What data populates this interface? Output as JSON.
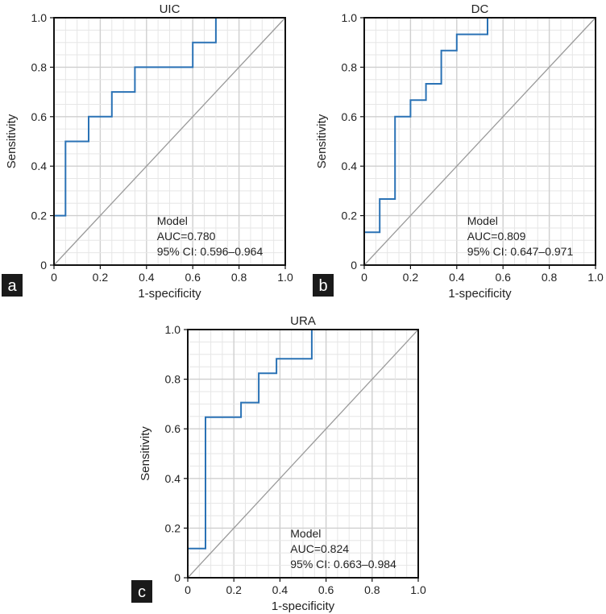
{
  "chart_data": [
    {
      "type": "line",
      "panel_label": "a",
      "title": "UIC",
      "xlabel": "1-specificity",
      "ylabel": "Sensitivity",
      "xlim": [
        0,
        1
      ],
      "ylim": [
        0,
        1
      ],
      "xticks": [
        "0",
        "0.2",
        "0.4",
        "0.6",
        "0.8",
        "1.0"
      ],
      "yticks": [
        "0",
        "0.2",
        "0.4",
        "0.6",
        "0.8",
        "1.0"
      ],
      "grid": true,
      "legend_position": "bottom-right",
      "legend": [
        "Model",
        "AUC=0.780",
        "95% CI: 0.596–0.964"
      ],
      "series": [
        {
          "name": "ROC curve",
          "color": "#2a72b5",
          "x": [
            0,
            0,
            0.05,
            0.05,
            0.15,
            0.15,
            0.25,
            0.25,
            0.35,
            0.35,
            0.6,
            0.6,
            0.7,
            0.7,
            1.0
          ],
          "y": [
            0,
            0.2,
            0.2,
            0.5,
            0.5,
            0.6,
            0.6,
            0.7,
            0.7,
            0.8,
            0.8,
            0.9,
            0.9,
            1.0,
            1.0
          ]
        },
        {
          "name": "reference diagonal",
          "color": "#9a9a9a",
          "x": [
            0,
            1
          ],
          "y": [
            0,
            1
          ]
        }
      ]
    },
    {
      "type": "line",
      "panel_label": "b",
      "title": "DC",
      "xlabel": "1-specificity",
      "ylabel": "Sensitivity",
      "xlim": [
        0,
        1
      ],
      "ylim": [
        0,
        1
      ],
      "xticks": [
        "0",
        "0.2",
        "0.4",
        "0.6",
        "0.8",
        "1.0"
      ],
      "yticks": [
        "0",
        "0.2",
        "0.4",
        "0.6",
        "0.8",
        "1.0"
      ],
      "grid": true,
      "legend_position": "bottom-right",
      "legend": [
        "Model",
        "AUC=0.809",
        "95% CI: 0.647–0.971"
      ],
      "series": [
        {
          "name": "ROC curve",
          "color": "#2a72b5",
          "x": [
            0,
            0,
            0.067,
            0.067,
            0.133,
            0.133,
            0.2,
            0.2,
            0.267,
            0.267,
            0.333,
            0.333,
            0.4,
            0.4,
            0.533,
            0.533,
            1.0
          ],
          "y": [
            0,
            0.133,
            0.133,
            0.267,
            0.267,
            0.6,
            0.6,
            0.667,
            0.667,
            0.733,
            0.733,
            0.867,
            0.867,
            0.933,
            0.933,
            1.0,
            1.0
          ]
        },
        {
          "name": "reference diagonal",
          "color": "#9a9a9a",
          "x": [
            0,
            1
          ],
          "y": [
            0,
            1
          ]
        }
      ]
    },
    {
      "type": "line",
      "panel_label": "c",
      "title": "URA",
      "xlabel": "1-specificity",
      "ylabel": "Sensitivity",
      "xlim": [
        0,
        1
      ],
      "ylim": [
        0,
        1
      ],
      "xticks": [
        "0",
        "0.2",
        "0.4",
        "0.6",
        "0.8",
        "1.0"
      ],
      "yticks": [
        "0",
        "0.2",
        "0.4",
        "0.6",
        "0.8",
        "1.0"
      ],
      "grid": true,
      "legend_position": "bottom-right",
      "legend": [
        "Model",
        "AUC=0.824",
        "95% CI: 0.663–0.984"
      ],
      "series": [
        {
          "name": "ROC curve",
          "color": "#2a72b5",
          "x": [
            0,
            0,
            0.077,
            0.077,
            0.231,
            0.231,
            0.308,
            0.308,
            0.385,
            0.385,
            0.538,
            0.538,
            1.0
          ],
          "y": [
            0,
            0.118,
            0.118,
            0.647,
            0.647,
            0.706,
            0.706,
            0.824,
            0.824,
            0.882,
            0.882,
            1.0,
            1.0
          ]
        },
        {
          "name": "reference diagonal",
          "color": "#9a9a9a",
          "x": [
            0,
            1
          ],
          "y": [
            0,
            1
          ]
        }
      ]
    }
  ]
}
